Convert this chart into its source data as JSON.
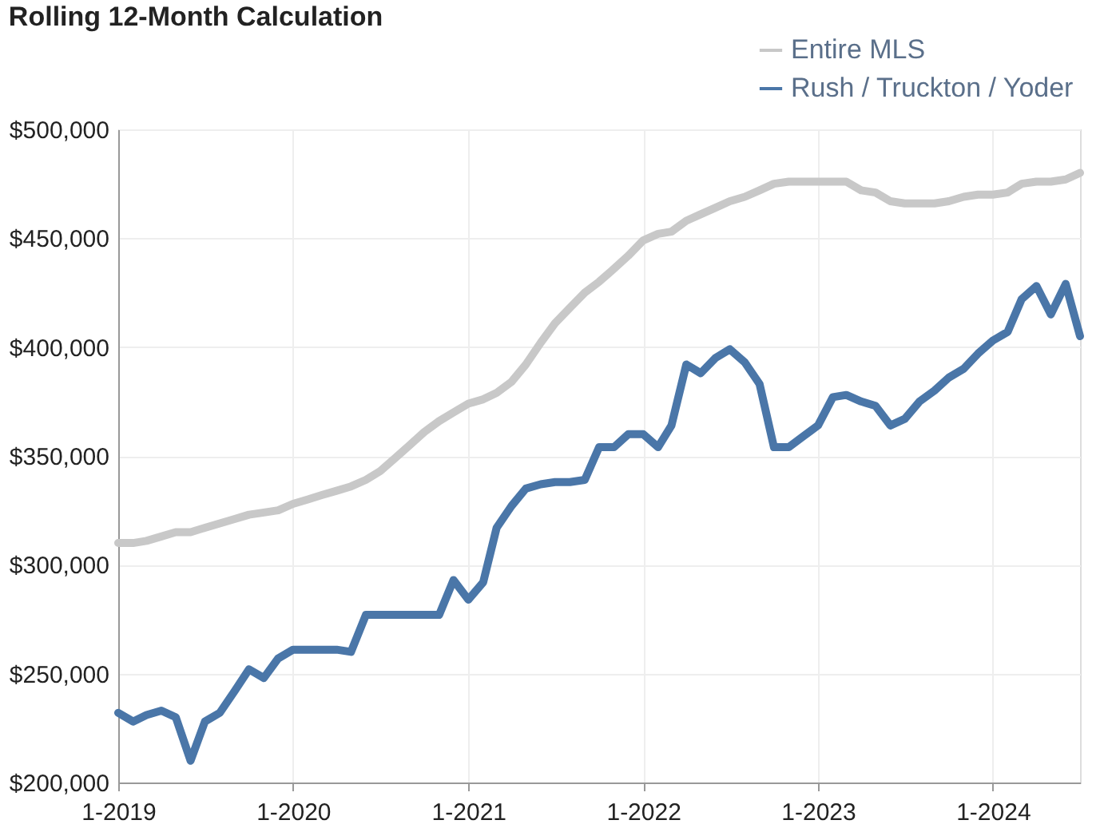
{
  "chart_data": {
    "type": "line",
    "title": "Rolling 12-Month Calculation",
    "x": [
      "2019-01",
      "2019-02",
      "2019-03",
      "2019-04",
      "2019-05",
      "2019-06",
      "2019-07",
      "2019-08",
      "2019-09",
      "2019-10",
      "2019-11",
      "2019-12",
      "2020-01",
      "2020-02",
      "2020-03",
      "2020-04",
      "2020-05",
      "2020-06",
      "2020-07",
      "2020-08",
      "2020-09",
      "2020-10",
      "2020-11",
      "2020-12",
      "2021-01",
      "2021-02",
      "2021-03",
      "2021-04",
      "2021-05",
      "2021-06",
      "2021-07",
      "2021-08",
      "2021-09",
      "2021-10",
      "2021-11",
      "2021-12",
      "2022-01",
      "2022-02",
      "2022-03",
      "2022-04",
      "2022-05",
      "2022-06",
      "2022-07",
      "2022-08",
      "2022-09",
      "2022-10",
      "2022-11",
      "2022-12",
      "2023-01",
      "2023-02",
      "2023-03",
      "2023-04",
      "2023-05",
      "2023-06",
      "2023-07",
      "2023-08",
      "2023-09",
      "2023-10",
      "2023-11",
      "2023-12",
      "2024-01",
      "2024-02",
      "2024-03",
      "2024-04",
      "2024-05",
      "2024-06",
      "2024-07"
    ],
    "series": [
      {
        "name": "Entire MLS",
        "color": "#c8c8c8",
        "values": [
          310000,
          310000,
          311000,
          313000,
          315000,
          315000,
          317000,
          319000,
          321000,
          323000,
          324000,
          325000,
          328000,
          330000,
          332000,
          334000,
          336000,
          339000,
          343000,
          349000,
          355000,
          361000,
          366000,
          370000,
          374000,
          376000,
          379000,
          384000,
          392000,
          402000,
          411000,
          418000,
          425000,
          430000,
          436000,
          442000,
          449000,
          452000,
          453000,
          458000,
          461000,
          464000,
          467000,
          469000,
          472000,
          475000,
          476000,
          476000,
          476000,
          476000,
          476000,
          472000,
          471000,
          467000,
          466000,
          466000,
          466000,
          467000,
          469000,
          470000,
          470000,
          471000,
          475000,
          476000,
          476000,
          477000,
          480000
        ]
      },
      {
        "name": "Rush / Truckton / Yoder",
        "color": "#4a76a8",
        "values": [
          232000,
          228000,
          231000,
          233000,
          230000,
          210000,
          228000,
          232000,
          242000,
          252000,
          248000,
          257000,
          261000,
          261000,
          261000,
          261000,
          260000,
          277000,
          277000,
          277000,
          277000,
          277000,
          277000,
          293000,
          284000,
          292000,
          317000,
          327000,
          335000,
          337000,
          338000,
          338000,
          339000,
          354000,
          354000,
          360000,
          360000,
          354000,
          364000,
          392000,
          388000,
          395000,
          399000,
          393000,
          383000,
          354000,
          354000,
          359000,
          364000,
          377000,
          378000,
          375000,
          373000,
          364000,
          367000,
          375000,
          380000,
          386000,
          390000,
          397000,
          403000,
          407000,
          422000,
          428000,
          415000,
          429000,
          405000
        ]
      }
    ],
    "xlim": [
      "2019-01",
      "2024-07"
    ],
    "xticks": [
      {
        "value": "2019-01",
        "label": "1-2019"
      },
      {
        "value": "2020-01",
        "label": "1-2020"
      },
      {
        "value": "2021-01",
        "label": "1-2021"
      },
      {
        "value": "2022-01",
        "label": "1-2022"
      },
      {
        "value": "2023-01",
        "label": "1-2023"
      },
      {
        "value": "2024-01",
        "label": "1-2024"
      }
    ],
    "ylim": [
      200000,
      500000
    ],
    "yticks": [
      {
        "value": 200000,
        "label": "$200,000"
      },
      {
        "value": 250000,
        "label": "$250,000"
      },
      {
        "value": 300000,
        "label": "$300,000"
      },
      {
        "value": 350000,
        "label": "$350,000"
      },
      {
        "value": 400000,
        "label": "$400,000"
      },
      {
        "value": 450000,
        "label": "$450,000"
      },
      {
        "value": 500000,
        "label": "$500,000"
      }
    ],
    "grid": true,
    "legend": "top right",
    "marker": "none",
    "line_style": "solid"
  }
}
